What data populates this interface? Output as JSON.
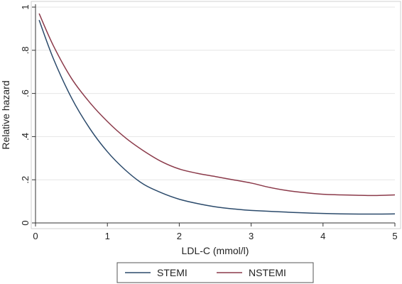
{
  "chart_data": {
    "type": "line",
    "title": "",
    "xlabel": "LDL-C (mmol/l)",
    "ylabel": "Relative hazard",
    "xlim": [
      0,
      5
    ],
    "ylim": [
      0,
      1
    ],
    "x_ticks": [
      {
        "value": 0,
        "label": "0"
      },
      {
        "value": 1,
        "label": "1"
      },
      {
        "value": 2,
        "label": "2"
      },
      {
        "value": 3,
        "label": "3"
      },
      {
        "value": 4,
        "label": "4"
      },
      {
        "value": 5,
        "label": "5"
      }
    ],
    "y_ticks": [
      {
        "value": 0,
        "label": "0"
      },
      {
        "value": 0.2,
        "label": ".2"
      },
      {
        "value": 0.4,
        "label": ".4"
      },
      {
        "value": 0.6,
        "label": ".6"
      },
      {
        "value": 0.8,
        "label": ".8"
      },
      {
        "value": 1,
        "label": "1"
      }
    ],
    "grid": "horizontal",
    "legend_position": "bottom",
    "series": [
      {
        "name": "STEMI",
        "color": "#2b4a6b",
        "x": [
          0.05,
          0.25,
          0.5,
          0.75,
          1.0,
          1.25,
          1.5,
          1.75,
          2.0,
          2.25,
          2.5,
          2.75,
          3.0,
          3.5,
          4.0,
          4.5,
          5.0
        ],
        "y": [
          0.94,
          0.76,
          0.58,
          0.44,
          0.33,
          0.245,
          0.18,
          0.14,
          0.11,
          0.09,
          0.075,
          0.065,
          0.058,
          0.05,
          0.044,
          0.041,
          0.042
        ]
      },
      {
        "name": "NSTEMI",
        "color": "#8b3a4a",
        "x": [
          0.05,
          0.25,
          0.5,
          0.75,
          1.0,
          1.25,
          1.5,
          1.75,
          2.0,
          2.25,
          2.5,
          2.75,
          3.0,
          3.25,
          3.5,
          3.75,
          4.0,
          4.25,
          4.5,
          4.75,
          5.0
        ],
        "y": [
          0.97,
          0.82,
          0.67,
          0.56,
          0.47,
          0.395,
          0.335,
          0.285,
          0.25,
          0.23,
          0.215,
          0.2,
          0.185,
          0.165,
          0.15,
          0.14,
          0.133,
          0.13,
          0.128,
          0.127,
          0.13
        ]
      }
    ]
  }
}
